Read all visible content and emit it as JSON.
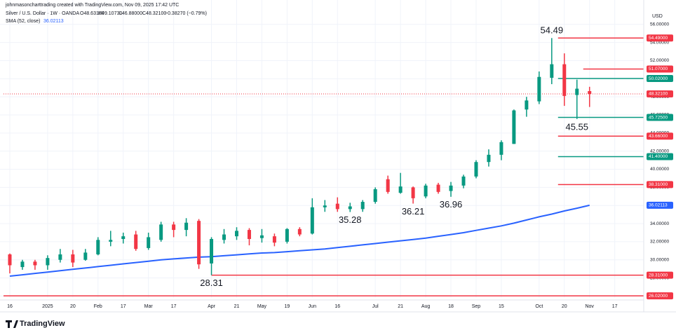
{
  "header": {
    "attribution": "johnmasoncharttrading created with TradingView.com, Nov 09, 2025 17:42 UTC",
    "symbol": "Silver / U.S. Dollar · 1W · OANDA",
    "ohlc": [
      "O48.63180",
      "H49.10730",
      "L46.88000",
      "C48.32100",
      "−0.38270 (−0.79%)"
    ],
    "logo": "TradingView"
  },
  "chart_data": {
    "type": "ohlc",
    "currency": "USD",
    "open": [
      30.6,
      29.2,
      29.8,
      29.4,
      30.0,
      30.6,
      30.0,
      30.6,
      32.0,
      32.3,
      32.8,
      31.3,
      32.2,
      33.9,
      33.3,
      34.3,
      29.6,
      32.2,
      32.6,
      33.3,
      32.4,
      32.6,
      32.0,
      33.4,
      32.9,
      35.8,
      36.2,
      35.6,
      35.6,
      36.4,
      38.9,
      37.4,
      38.0,
      37.0,
      38.3,
      37.6,
      38.2,
      39.2,
      40.8,
      41.6,
      42.8,
      46.6,
      47.5,
      50.1,
      51.6,
      48.2,
      48.6318
    ],
    "high": [
      30.7,
      30.0,
      30.0,
      30.5,
      31.2,
      31.1,
      31.2,
      32.5,
      33.2,
      33.0,
      33.2,
      33.0,
      34.2,
      34.2,
      34.6,
      34.5,
      32.5,
      33.4,
      33.6,
      33.5,
      33.4,
      32.9,
      33.5,
      33.6,
      36.8,
      36.6,
      36.9,
      36.3,
      36.6,
      38.0,
      39.3,
      39.6,
      38.1,
      38.4,
      38.5,
      38.6,
      39.4,
      41.0,
      42.2,
      43.2,
      46.6,
      48.0,
      50.8,
      54.49,
      52.8,
      49.9,
      49.1073
    ],
    "low": [
      28.5,
      28.9,
      28.9,
      28.9,
      29.7,
      29.2,
      29.9,
      30.5,
      31.5,
      31.8,
      31.0,
      31.1,
      32.0,
      32.5,
      32.6,
      29.0,
      28.31,
      31.8,
      32.2,
      31.6,
      31.9,
      31.5,
      31.8,
      32.6,
      32.8,
      35.3,
      35.3,
      35.28,
      35.3,
      36.2,
      37.3,
      37.3,
      36.21,
      36.8,
      37.3,
      36.96,
      37.9,
      39.0,
      40.3,
      41.0,
      42.8,
      45.8,
      47.2,
      49.4,
      47.0,
      45.55,
      46.88
    ],
    "close": [
      29.4,
      29.8,
      29.4,
      30.2,
      30.6,
      29.7,
      30.8,
      32.2,
      32.2,
      32.6,
      31.2,
      32.5,
      33.9,
      33.3,
      34.1,
      29.5,
      32.3,
      32.8,
      33.2,
      32.3,
      32.7,
      31.9,
      33.4,
      32.8,
      35.8,
      36.0,
      35.6,
      35.9,
      36.4,
      37.8,
      37.5,
      38.1,
      36.8,
      38.2,
      37.5,
      38.2,
      39.2,
      40.8,
      41.6,
      43.0,
      46.5,
      47.6,
      50.2,
      51.6,
      48.1,
      48.9,
      48.321
    ],
    "up_color": "#089981",
    "down_color": "#f23645",
    "series": [
      {
        "name": "SMA (52, close)",
        "color": "#2962ff",
        "values": [
          28.2,
          28.35,
          28.5,
          28.65,
          28.8,
          28.95,
          29.1,
          29.25,
          29.4,
          29.55,
          29.7,
          29.85,
          30.0,
          30.1,
          30.2,
          30.3,
          30.35,
          30.45,
          30.55,
          30.65,
          30.75,
          30.8,
          30.9,
          31.0,
          31.1,
          31.2,
          31.35,
          31.5,
          31.65,
          31.8,
          31.95,
          32.1,
          32.25,
          32.4,
          32.6,
          32.8,
          33.0,
          33.25,
          33.5,
          33.75,
          34.05,
          34.4,
          34.75,
          35.05,
          35.4,
          35.7,
          36.02113
        ]
      }
    ],
    "levels": [
      {
        "value": 54.49,
        "label": "54.49000",
        "color": "#f23645"
      },
      {
        "value": 51.07,
        "label": "51.07000",
        "color": "#f23645"
      },
      {
        "value": 50.02,
        "label": "50.02000",
        "color": "#089981"
      },
      {
        "value": 48.321,
        "label": "48.32100",
        "color": "#f23645",
        "style": "dotted"
      },
      {
        "value": 45.725,
        "label": "45.72500",
        "color": "#089981"
      },
      {
        "value": 43.66,
        "label": "43.66000",
        "color": "#f23645"
      },
      {
        "value": 41.4,
        "label": "41.40000",
        "color": "#089981"
      },
      {
        "value": 38.31,
        "label": "38.31000",
        "color": "#f23645"
      },
      {
        "value": 28.31,
        "label": "28.31000",
        "color": "#f23645"
      },
      {
        "value": 26.02,
        "label": "26.02000",
        "color": "#f23645"
      }
    ],
    "annotations": [
      54.49,
      45.55,
      28.31,
      35.28,
      36.21,
      36.96
    ],
    "xlim": [
      -0.5,
      50.3
    ],
    "ylim": [
      25.8,
      57.3
    ],
    "xticks": [
      {
        "value": 0,
        "label": "16"
      },
      {
        "value": 3,
        "label": "2025"
      },
      {
        "value": 5,
        "label": "20"
      },
      {
        "value": 7,
        "label": "Feb"
      },
      {
        "value": 9,
        "label": "17"
      },
      {
        "value": 11,
        "label": "Mar"
      },
      {
        "value": 13,
        "label": "17"
      },
      {
        "value": 16,
        "label": "Apr"
      },
      {
        "value": 18,
        "label": "21"
      },
      {
        "value": 20,
        "label": "May"
      },
      {
        "value": 22,
        "label": "19"
      },
      {
        "value": 24,
        "label": "Jun"
      },
      {
        "value": 26,
        "label": "16"
      },
      {
        "value": 29,
        "label": "Jul"
      },
      {
        "value": 31,
        "label": "21"
      },
      {
        "value": 33,
        "label": "Aug"
      },
      {
        "value": 35,
        "label": "18"
      },
      {
        "value": 37,
        "label": "Sep"
      },
      {
        "value": 39,
        "label": "15"
      },
      {
        "value": 42,
        "label": "Oct"
      },
      {
        "value": 44,
        "label": "20"
      },
      {
        "value": 46,
        "label": "Nov"
      },
      {
        "value": 48,
        "label": "17"
      }
    ],
    "yticks": [
      {
        "value": 26,
        "label": "26.00000"
      },
      {
        "value": 28,
        "label": "28.00000"
      },
      {
        "value": 30,
        "label": "30.00000"
      },
      {
        "value": 32,
        "label": "32.00000"
      },
      {
        "value": 34,
        "label": "34.00000"
      },
      {
        "value": 36,
        "label": "36.00000"
      },
      {
        "value": 38,
        "label": "38.00000"
      },
      {
        "value": 40,
        "label": "40.00000"
      },
      {
        "value": 42,
        "label": "42.00000"
      },
      {
        "value": 44,
        "label": "44.00000"
      },
      {
        "value": 46,
        "label": "46.00000"
      },
      {
        "value": 48,
        "label": "48.00000"
      },
      {
        "value": 50,
        "label": "50.00000"
      },
      {
        "value": 52,
        "label": "52.00000"
      },
      {
        "value": 54,
        "label": "54.00000"
      },
      {
        "value": 56,
        "label": "56.00000"
      }
    ],
    "grid": true
  }
}
